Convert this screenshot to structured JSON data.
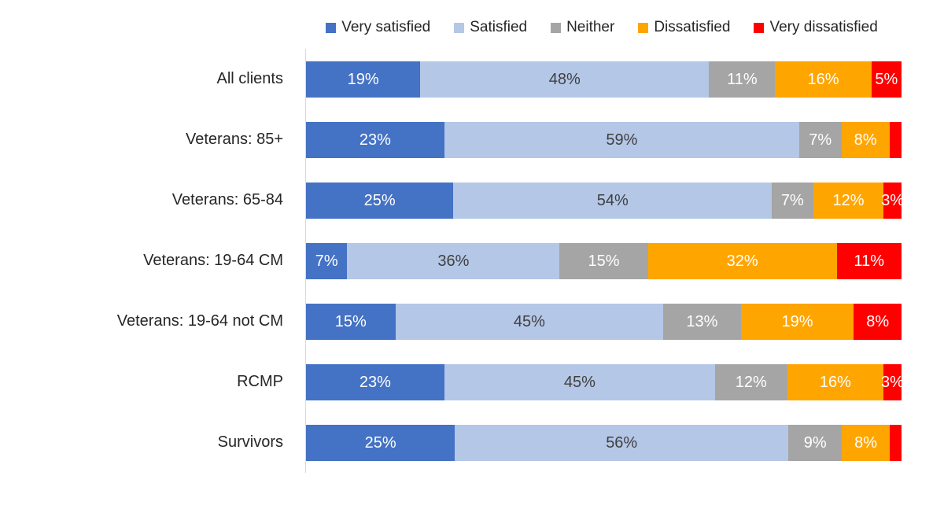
{
  "page": {
    "background": "#FFFFFF"
  },
  "chart_data": {
    "type": "bar",
    "variant": "stacked-horizontal-100pct",
    "orientation": "horizontal",
    "title": "",
    "xlabel": "",
    "ylabel": "",
    "grid": false,
    "legend_position": "top",
    "axis_line_color": "#D9D9D9",
    "category_label_color": "#262626",
    "legend_label_color": "#262626",
    "categories": [
      "All clients",
      "Veterans: 85+",
      "Veterans: 65-84",
      "Veterans: 19-64 CM",
      "Veterans: 19-64 not CM",
      "RCMP",
      "Survivors"
    ],
    "series": [
      {
        "name": "Very satisfied",
        "color": "#4472C4",
        "label_color": "#FFFFFF",
        "values": [
          19,
          23,
          25,
          7,
          15,
          23,
          25
        ],
        "labels": [
          "19%",
          "23%",
          "25%",
          "7%",
          "15%",
          "23%",
          "25%"
        ]
      },
      {
        "name": "Satisfied",
        "color": "#B4C7E7",
        "label_color": "#404040",
        "values": [
          48,
          59,
          54,
          36,
          45,
          45,
          56
        ],
        "labels": [
          "48%",
          "59%",
          "54%",
          "36%",
          "45%",
          "45%",
          "56%"
        ]
      },
      {
        "name": "Neither",
        "color": "#A5A5A5",
        "label_color": "#FFFFFF",
        "values": [
          11,
          7,
          7,
          15,
          13,
          12,
          9
        ],
        "labels": [
          "11%",
          "7%",
          "7%",
          "15%",
          "13%",
          "12%",
          "9%"
        ]
      },
      {
        "name": "Dissatisfied",
        "color": "#FFA500",
        "label_color": "#FFFFFF",
        "values": [
          16,
          8,
          12,
          32,
          19,
          16,
          8
        ],
        "labels": [
          "16%",
          "8%",
          "12%",
          "32%",
          "19%",
          "16%",
          "8%"
        ]
      },
      {
        "name": "Very dissatisfied",
        "color": "#FF0000",
        "label_color": "#FFFFFF",
        "values": [
          5,
          2,
          3,
          11,
          8,
          3,
          2
        ],
        "labels": [
          "5%",
          "",
          "3%",
          "11%",
          "8%",
          "3%",
          ""
        ]
      }
    ]
  }
}
